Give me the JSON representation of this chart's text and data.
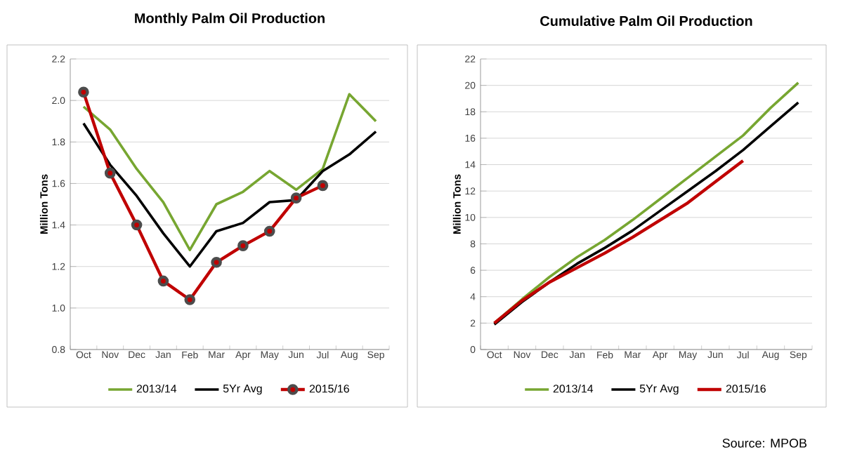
{
  "chart_data": [
    {
      "type": "line",
      "title": "Monthly Palm Oil Production",
      "ylabel": "Million Tons",
      "categories": [
        "Oct",
        "Nov",
        "Dec",
        "Jan",
        "Feb",
        "Mar",
        "Apr",
        "May",
        "Jun",
        "Jul",
        "Aug",
        "Sep"
      ],
      "series": [
        {
          "name": "2013/14",
          "color": "#77a631",
          "values": [
            1.97,
            1.86,
            1.67,
            1.51,
            1.28,
            1.5,
            1.56,
            1.66,
            1.57,
            1.67,
            2.03,
            1.9
          ]
        },
        {
          "name": "5Yr  Avg",
          "color": "#000000",
          "values": [
            1.89,
            1.69,
            1.54,
            1.36,
            1.2,
            1.37,
            1.41,
            1.51,
            1.52,
            1.66,
            1.74,
            1.85
          ]
        },
        {
          "name": "2015/16",
          "color": "#c00000",
          "marker": "circle",
          "values": [
            2.04,
            1.65,
            1.4,
            1.13,
            1.04,
            1.22,
            1.3,
            1.37,
            1.53,
            1.59,
            null,
            null
          ]
        }
      ],
      "ylim": [
        0.8,
        2.2
      ],
      "yticks": [
        0.8,
        {
          "value": 1,
          "label": "1.0"
        },
        1.2,
        1.4,
        1.6,
        1.8,
        {
          "value": 2,
          "label": "2.0"
        },
        2.2
      ],
      "grid": "y",
      "legend": "bottom"
    },
    {
      "type": "line",
      "title": "Cumulative Palm Oil Production",
      "ylabel": "Million Tons",
      "categories": [
        "Oct",
        "Nov",
        "Dec",
        "Jan",
        "Feb",
        "Mar",
        "Apr",
        "May",
        "Jun",
        "Jul",
        "Aug",
        "Sep"
      ],
      "series": [
        {
          "name": "2013/14",
          "color": "#77a631",
          "values": [
            2.0,
            3.8,
            5.5,
            7.0,
            8.3,
            9.8,
            11.4,
            13.0,
            14.6,
            16.2,
            18.3,
            20.2
          ]
        },
        {
          "name": "5Yr  Avg",
          "color": "#000000",
          "values": [
            1.9,
            3.6,
            5.1,
            6.5,
            7.7,
            9.0,
            10.5,
            12.0,
            13.5,
            15.1,
            16.9,
            18.7
          ]
        },
        {
          "name": "2015/16",
          "color": "#c00000",
          "values": [
            2.0,
            3.7,
            5.1,
            6.2,
            7.3,
            8.5,
            9.8,
            11.1,
            12.7,
            14.3,
            null,
            null
          ]
        }
      ],
      "ylim": [
        0,
        22
      ],
      "yticks": [
        0,
        2,
        4,
        6,
        8,
        10,
        12,
        14,
        16,
        18,
        20,
        22
      ],
      "grid": "y",
      "legend": "bottom",
      "annotations": [
        "Source: MPOB"
      ]
    }
  ]
}
